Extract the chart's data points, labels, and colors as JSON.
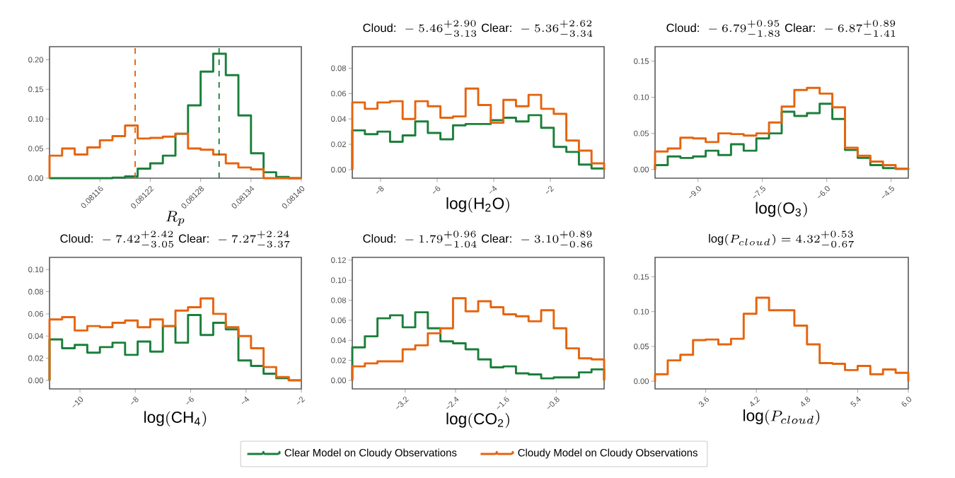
{
  "chart_data": [
    {
      "type": "histogram",
      "xlabel": "R_p",
      "legend": "bottom",
      "xlim": [
        0.0811,
        0.0814
      ],
      "ylim": [
        0,
        0.222
      ],
      "xticks": [
        {
          "value": 0.08116,
          "label": "0.08116"
        },
        {
          "value": 0.08122,
          "label": "0.08122"
        },
        {
          "value": 0.08128,
          "label": "0.08128"
        },
        {
          "value": 0.08134,
          "label": "0.08134"
        },
        {
          "value": 0.0814,
          "label": "0.08140"
        }
      ],
      "yticks": [
        {
          "value": 0,
          "label": "0.00"
        },
        {
          "value": 0.05,
          "label": "0.05"
        },
        {
          "value": 0.1,
          "label": "0.10"
        },
        {
          "value": 0.15,
          "label": "0.15"
        },
        {
          "value": 0.2,
          "label": "0.20"
        }
      ],
      "bins": [
        0.0811,
        0.081115,
        0.08113,
        0.081145,
        0.08116,
        0.081175,
        0.08119,
        0.081205,
        0.08122,
        0.081235,
        0.08125,
        0.081265,
        0.08128,
        0.081295,
        0.08131,
        0.081325,
        0.08134,
        0.081355,
        0.08137,
        0.081385,
        0.0814
      ],
      "series": [
        {
          "name": "Clear Model on Cloudy Observations",
          "color": "#1b7f3a",
          "values": [
            0,
            0,
            0,
            0,
            0,
            0.001,
            0.003,
            0.016,
            0.025,
            0.038,
            0.075,
            0.123,
            0.18,
            0.21,
            0.174,
            0.106,
            0.042,
            0.01,
            0.002,
            0
          ]
        },
        {
          "name": "Cloudy Model on Cloudy Observations",
          "color": "#e5640e",
          "values": [
            0.038,
            0.05,
            0.04,
            0.052,
            0.064,
            0.071,
            0.089,
            0.067,
            0.068,
            0.07,
            0.075,
            0.05,
            0.048,
            0.04,
            0.025,
            0.018,
            0.015,
            0,
            0,
            0
          ]
        }
      ],
      "ref_lines": [
        {
          "axis": "x",
          "value": 0.081202,
          "color": "#e5640e",
          "line_style": "dashed"
        },
        {
          "axis": "x",
          "value": 0.081302,
          "color": "#1b7f3a",
          "line_style": "dashed"
        }
      ]
    },
    {
      "type": "histogram",
      "title": "\\text{Cloud: }-5.46^{+2.90}_{-3.13}\\text{ Clear: }-5.36^{+2.62}_{-3.34}",
      "xlabel": "\\mathrm{log}(\\mathrm{H_2O})",
      "xlim": [
        -9,
        -0.1
      ],
      "ylim": [
        -0.0067,
        0.097
      ],
      "xticks": [
        {
          "value": -8,
          "label": "−8"
        },
        {
          "value": -6,
          "label": "−6"
        },
        {
          "value": -4,
          "label": "−4"
        },
        {
          "value": -2,
          "label": "−2"
        }
      ],
      "yticks": [
        {
          "value": 0,
          "label": "0.00"
        },
        {
          "value": 0.02,
          "label": "0.02"
        },
        {
          "value": 0.04,
          "label": "0.04"
        },
        {
          "value": 0.06,
          "label": "0.06"
        },
        {
          "value": 0.08,
          "label": "0.08"
        }
      ],
      "bins": [
        -9,
        -8.555,
        -8.11,
        -7.665,
        -7.22,
        -6.775,
        -6.33,
        -5.885,
        -5.44,
        -4.995,
        -4.55,
        -4.105,
        -3.66,
        -3.215,
        -2.77,
        -2.325,
        -1.88,
        -1.435,
        -0.99,
        -0.545,
        -0.1
      ],
      "series": [
        {
          "color": "#1b7f3a",
          "values": [
            0.031,
            0.028,
            0.03,
            0.022,
            0.027,
            0.038,
            0.029,
            0.024,
            0.035,
            0.036,
            0.036,
            0.039,
            0.041,
            0.038,
            0.043,
            0.033,
            0.018,
            0.014,
            0.004,
            0.001
          ]
        },
        {
          "color": "#e5640e",
          "values": [
            0.053,
            0.048,
            0.053,
            0.054,
            0.04,
            0.054,
            0.05,
            0.041,
            0.042,
            0.064,
            0.051,
            0.037,
            0.055,
            0.05,
            0.059,
            0.048,
            0.044,
            0.023,
            0.015,
            0.005
          ]
        }
      ]
    },
    {
      "type": "histogram",
      "title": "\\text{Cloud: }-6.79^{+0.95}_{-1.83}\\text{ Clear: }-6.87^{+0.89}_{-1.41}",
      "xlabel": "\\mathrm{log}(\\mathrm{O_3})",
      "xlim": [
        -10,
        -4.1
      ],
      "ylim": [
        -0.012,
        0.17
      ],
      "xticks": [
        {
          "value": -9,
          "label": "−9.0"
        },
        {
          "value": -7.5,
          "label": "−7.5"
        },
        {
          "value": -6,
          "label": "−6.0"
        },
        {
          "value": -4.5,
          "label": "−4.5"
        }
      ],
      "yticks": [
        {
          "value": 0,
          "label": "0.00"
        },
        {
          "value": 0.05,
          "label": "0.05"
        },
        {
          "value": 0.1,
          "label": "0.10"
        },
        {
          "value": 0.15,
          "label": "0.15"
        }
      ],
      "bins": [
        -10,
        -9.705,
        -9.41,
        -9.115,
        -8.82,
        -8.525,
        -8.23,
        -7.935,
        -7.64,
        -7.345,
        -7.05,
        -6.755,
        -6.46,
        -6.165,
        -5.87,
        -5.575,
        -5.28,
        -4.985,
        -4.69,
        -4.395,
        -4.1
      ],
      "series": [
        {
          "color": "#1b7f3a",
          "values": [
            0.006,
            0.018,
            0.016,
            0.018,
            0.026,
            0.02,
            0.035,
            0.026,
            0.043,
            0.05,
            0.08,
            0.074,
            0.078,
            0.091,
            0.07,
            0.027,
            0.016,
            0.006,
            0.002,
            0.001
          ]
        },
        {
          "color": "#e5640e",
          "values": [
            0.025,
            0.029,
            0.044,
            0.043,
            0.038,
            0.05,
            0.049,
            0.047,
            0.05,
            0.065,
            0.087,
            0.11,
            0.113,
            0.105,
            0.086,
            0.03,
            0.019,
            0.011,
            0.006,
            0.001
          ]
        }
      ]
    },
    {
      "type": "histogram",
      "title": "\\text{Cloud: }-7.42^{+2.42}_{-3.05}\\text{ Clear: }-7.27^{+2.24}_{-3.37}",
      "xlabel": "\\mathrm{log}(\\mathrm{CH_4})",
      "xlim": [
        -11.1,
        -2
      ],
      "ylim": [
        -0.0077,
        0.111
      ],
      "xticks": [
        {
          "value": -10,
          "label": "−10"
        },
        {
          "value": -8,
          "label": "−8"
        },
        {
          "value": -6,
          "label": "−6"
        },
        {
          "value": -4,
          "label": "−4"
        },
        {
          "value": -2,
          "label": "−2"
        }
      ],
      "yticks": [
        {
          "value": 0,
          "label": "0.00"
        },
        {
          "value": 0.02,
          "label": "0.02"
        },
        {
          "value": 0.04,
          "label": "0.04"
        },
        {
          "value": 0.06,
          "label": "0.06"
        },
        {
          "value": 0.08,
          "label": "0.08"
        },
        {
          "value": 0.1,
          "label": "0.10"
        }
      ],
      "bins": [
        -11.1,
        -10.645,
        -10.19,
        -9.735,
        -9.28,
        -8.825,
        -8.37,
        -7.915,
        -7.46,
        -7.005,
        -6.55,
        -6.095,
        -5.64,
        -5.185,
        -4.73,
        -4.275,
        -3.82,
        -3.365,
        -2.91,
        -2.455,
        -2
      ],
      "series": [
        {
          "color": "#1b7f3a",
          "values": [
            0.037,
            0.029,
            0.032,
            0.025,
            0.03,
            0.034,
            0.023,
            0.035,
            0.026,
            0.049,
            0.034,
            0.059,
            0.041,
            0.052,
            0.046,
            0.018,
            0.013,
            0.006,
            0.002,
            0
          ]
        },
        {
          "color": "#e5640e",
          "values": [
            0.055,
            0.057,
            0.045,
            0.049,
            0.048,
            0.052,
            0.054,
            0.048,
            0.055,
            0.049,
            0.063,
            0.066,
            0.074,
            0.06,
            0.048,
            0.04,
            0.029,
            0.012,
            0.003,
            0
          ]
        }
      ]
    },
    {
      "type": "histogram",
      "title": "\\text{Cloud: }-1.79^{+0.96}_{-1.04}\\text{ Clear: }-3.10^{+0.89}_{-0.86}",
      "xlabel": "\\mathrm{log}(\\mathrm{CO_2})",
      "xlim": [
        -4.04,
        -0.04
      ],
      "ylim": [
        -0.0085,
        0.1228
      ],
      "xticks": [
        {
          "value": -3.2,
          "label": "−3.2"
        },
        {
          "value": -2.4,
          "label": "−2.4"
        },
        {
          "value": -1.6,
          "label": "−1.6"
        },
        {
          "value": -0.8,
          "label": "−0.8"
        }
      ],
      "yticks": [
        {
          "value": 0,
          "label": "0.00"
        },
        {
          "value": 0.02,
          "label": "0.02"
        },
        {
          "value": 0.04,
          "label": "0.04"
        },
        {
          "value": 0.06,
          "label": "0.06"
        },
        {
          "value": 0.08,
          "label": "0.08"
        },
        {
          "value": 0.1,
          "label": "0.10"
        },
        {
          "value": 0.12,
          "label": "0.12"
        }
      ],
      "bins": [
        -4.04,
        -3.84,
        -3.64,
        -3.44,
        -3.24,
        -3.04,
        -2.84,
        -2.64,
        -2.44,
        -2.24,
        -2.04,
        -1.84,
        -1.64,
        -1.44,
        -1.24,
        -1.04,
        -0.84,
        -0.64,
        -0.44,
        -0.24,
        -0.04
      ],
      "series": [
        {
          "color": "#1b7f3a",
          "values": [
            0.033,
            0.044,
            0.062,
            0.065,
            0.053,
            0.068,
            0.052,
            0.039,
            0.037,
            0.031,
            0.021,
            0.013,
            0.014,
            0.007,
            0.006,
            0.002,
            0.003,
            0.003,
            0.008,
            0.011
          ]
        },
        {
          "color": "#e5640e",
          "values": [
            0.014,
            0.017,
            0.019,
            0.019,
            0.031,
            0.035,
            0.047,
            0.052,
            0.082,
            0.069,
            0.079,
            0.073,
            0.066,
            0.064,
            0.059,
            0.07,
            0.052,
            0.032,
            0.022,
            0.021
          ]
        }
      ]
    },
    {
      "type": "histogram",
      "title": "\\log(P_{cloud}) = 4.32^{+0.53}_{-0.67}",
      "xlabel": "\\log(P_{cloud})",
      "xlim": [
        3,
        6
      ],
      "ylim": [
        -0.011,
        0.178
      ],
      "xticks": [
        {
          "value": 3.6,
          "label": "3.6"
        },
        {
          "value": 4.2,
          "label": "4.2"
        },
        {
          "value": 4.8,
          "label": "4.8"
        },
        {
          "value": 5.4,
          "label": "5.4"
        },
        {
          "value": 6,
          "label": "6.0"
        }
      ],
      "yticks": [
        {
          "value": 0,
          "label": "0.00"
        },
        {
          "value": 0.05,
          "label": "0.05"
        },
        {
          "value": 0.1,
          "label": "0.10"
        },
        {
          "value": 0.15,
          "label": "0.15"
        }
      ],
      "bins": [
        3,
        3.15,
        3.3,
        3.45,
        3.6,
        3.75,
        3.9,
        4.05,
        4.2,
        4.35,
        4.5,
        4.65,
        4.8,
        4.95,
        5.1,
        5.25,
        5.4,
        5.55,
        5.7,
        5.85,
        6
      ],
      "series": [
        {
          "color": "#e5640e",
          "values": [
            0.01,
            0.03,
            0.038,
            0.059,
            0.06,
            0.053,
            0.061,
            0.097,
            0.12,
            0.102,
            0.102,
            0.08,
            0.053,
            0.026,
            0.025,
            0.016,
            0.022,
            0.01,
            0.017,
            0.012
          ]
        }
      ]
    }
  ]
}
